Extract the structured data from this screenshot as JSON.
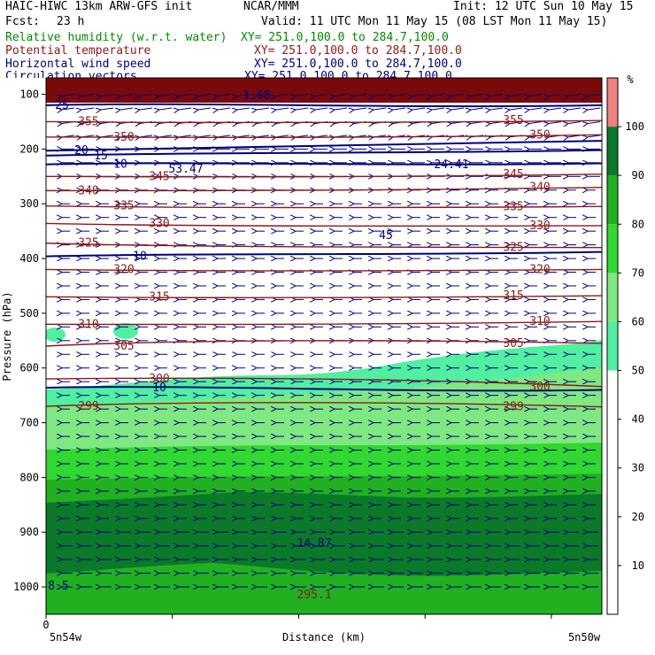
{
  "header": {
    "title": "HAIC-HIWC 13km ARW-GFS init",
    "org": "NCAR/MMM",
    "init": "Init: 12 UTC Sun 10 May 15",
    "fcst_label": "Fcst:",
    "fcst_value": "23 h",
    "valid": "Valid: 11 UTC Mon 11 May 15 (08 LST Mon 11 May 15)",
    "fields": [
      {
        "name": "Relative humidity (w.r.t. water)",
        "xy": "XY= 251.0,100.0 to 284.7,100.0",
        "color": "#008c00"
      },
      {
        "name": "Potential temperature",
        "xy": "XY= 251.0,100.0 to 284.7,100.0",
        "color": "#8b1a1a"
      },
      {
        "name": "Horizontal wind speed",
        "xy": "XY= 251.0,100.0 to 284.7,100.0",
        "color": "#000080"
      },
      {
        "name": "Circulation vectors",
        "xy": "XY= 251.0,100.0 to 284.7,100.0",
        "color": "#000080"
      }
    ]
  },
  "chart_data": {
    "type": "heatmap",
    "ylabel": "Pressure (hPa)",
    "xlabel": "Distance (km)",
    "x_left_label": "5n54w",
    "x_right_label": "5n50w",
    "x_origin_label": "0",
    "ylim": [
      1050,
      70
    ],
    "y_ticks": [
      100,
      200,
      300,
      400,
      500,
      600,
      700,
      800,
      900,
      1000
    ],
    "colorbar": {
      "unit": "%",
      "levels": [
        10,
        20,
        30,
        40,
        50,
        60,
        70,
        80,
        90,
        100
      ],
      "bins": [
        {
          "from": 0,
          "to": 50,
          "color": "#ffffff"
        },
        {
          "from": 50,
          "to": 60,
          "color": "#50f0a0"
        },
        {
          "from": 60,
          "to": 70,
          "color": "#80e880"
        },
        {
          "from": 70,
          "to": 80,
          "color": "#30d830"
        },
        {
          "from": 80,
          "to": 90,
          "color": "#20b020"
        },
        {
          "from": 90,
          "to": 100,
          "color": "#0a7a28"
        },
        {
          "from": 100,
          "to": 110,
          "color": "#f08080"
        }
      ]
    },
    "theta_contours": [
      {
        "value": "355",
        "pressure_left": 150,
        "pressure_right": 148
      },
      {
        "value": "350",
        "pressure_left": 178,
        "pressure_right": 174
      },
      {
        "value": "345",
        "pressure_left": 250,
        "pressure_right": 246
      },
      {
        "value": "340",
        "pressure_left": 276,
        "pressure_right": 270
      },
      {
        "value": "335",
        "pressure_left": 304,
        "pressure_right": 305
      },
      {
        "value": "330",
        "pressure_left": 336,
        "pressure_right": 340
      },
      {
        "value": "325",
        "pressure_left": 372,
        "pressure_right": 380
      },
      {
        "value": "320",
        "pressure_left": 420,
        "pressure_right": 420
      },
      {
        "value": "315",
        "pressure_left": 470,
        "pressure_right": 468
      },
      {
        "value": "310",
        "pressure_left": 520,
        "pressure_right": 515
      },
      {
        "value": "305",
        "pressure_left": 560,
        "pressure_right": 555
      },
      {
        "value": "300",
        "pressure_left": 620,
        "pressure_right": 634
      },
      {
        "value": "299",
        "pressure_left": 670,
        "pressure_right": 671
      }
    ],
    "wind_contours": [
      {
        "value": "25",
        "pressure_left": 120,
        "pressure_right": 120
      },
      {
        "value": "20",
        "pressure_left": 203,
        "pressure_right": 185
      },
      {
        "value": "15",
        "pressure_left": 212,
        "pressure_right": 202
      },
      {
        "value": "10",
        "pressure_left": 228,
        "pressure_right": 226
      },
      {
        "value": "10",
        "pressure_left": 396,
        "pressure_right": 388
      },
      {
        "value": "10",
        "pressure_left": 636,
        "pressure_right": 640
      }
    ],
    "extrema_labels": [
      {
        "text": "1.68",
        "kind": "min"
      },
      {
        "text": "24.41",
        "kind": "H"
      },
      {
        "text": "45",
        "kind": "L"
      },
      {
        "text": "53.47",
        "kind": "H"
      },
      {
        "text": "14.87",
        "kind": "H"
      },
      {
        "text": "295.1",
        "kind": "min"
      },
      {
        "text": "8.5",
        "kind": "min"
      }
    ]
  }
}
